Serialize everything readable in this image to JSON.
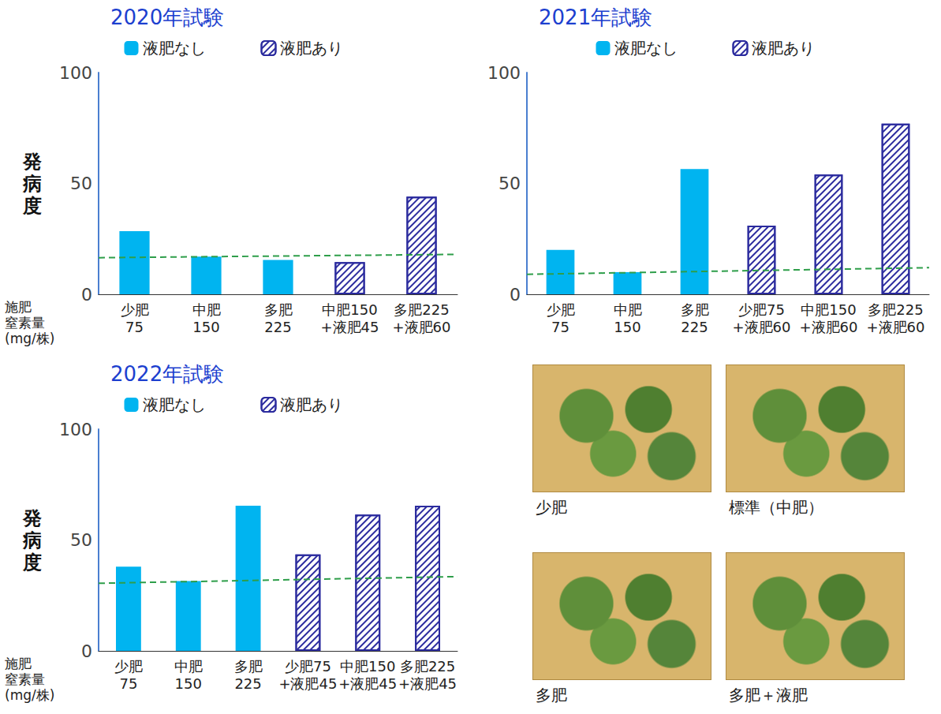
{
  "chart_data": [
    {
      "type": "bar",
      "title": "2020年試験",
      "y_label": "発病度",
      "x_label": "施肥\n窒素量\n(mg/株)",
      "categories": [
        "少肥\n75",
        "中肥\n150",
        "多肥\n225",
        "中肥150\n+液肥45",
        "多肥225\n+液肥60"
      ],
      "series": [
        {
          "name": "液肥なし",
          "color": "#00b4f0",
          "values": [
            28.5,
            17,
            15.5,
            null,
            null
          ]
        },
        {
          "name": "液肥あり",
          "color": "#2b2b9e",
          "values": [
            null,
            null,
            null,
            14.5,
            44
          ]
        }
      ],
      "reference_line": [
        16.5,
        18
      ],
      "ylim": [
        0,
        100
      ],
      "yticks": [
        0,
        50,
        100
      ],
      "grid": false,
      "legend": "top"
    },
    {
      "type": "bar",
      "title": "2021年試験",
      "categories": [
        "少肥\n75",
        "中肥\n150",
        "多肥\n225",
        "少肥75\n+液肥60",
        "中肥150\n+液肥60",
        "多肥225\n+液肥60"
      ],
      "series": [
        {
          "name": "液肥なし",
          "color": "#00b4f0",
          "values": [
            20,
            10,
            56.5,
            null,
            null,
            null
          ]
        },
        {
          "name": "液肥あり",
          "color": "#2b2b9e",
          "values": [
            null,
            null,
            null,
            31,
            54,
            77
          ]
        }
      ],
      "reference_line": [
        9,
        12
      ],
      "ylim": [
        0,
        100
      ],
      "yticks": [
        0,
        50,
        100
      ],
      "grid": false,
      "legend": "top"
    },
    {
      "type": "bar",
      "title": "2022年試験",
      "y_label": "発病度",
      "x_label": "施肥\n窒素量\n(mg/株)",
      "categories": [
        "少肥\n75",
        "中肥\n150",
        "多肥\n225",
        "少肥75\n+液肥45",
        "中肥150\n+液肥45",
        "多肥225\n+液肥45"
      ],
      "series": [
        {
          "name": "液肥なし",
          "color": "#00b4f0",
          "values": [
            38,
            31.5,
            65.5,
            null,
            null,
            null
          ]
        },
        {
          "name": "液肥あり",
          "color": "#2b2b9e",
          "values": [
            null,
            null,
            null,
            43.5,
            61.5,
            65.5
          ]
        }
      ],
      "reference_line": [
        30.5,
        33.5
      ],
      "ylim": [
        0,
        100
      ],
      "yticks": [
        0,
        50,
        100
      ],
      "grid": false,
      "legend": "top"
    }
  ],
  "photos": [
    {
      "caption": "少肥"
    },
    {
      "caption": "標準（中肥）"
    },
    {
      "caption": "多肥"
    },
    {
      "caption": "多肥＋液肥"
    }
  ]
}
